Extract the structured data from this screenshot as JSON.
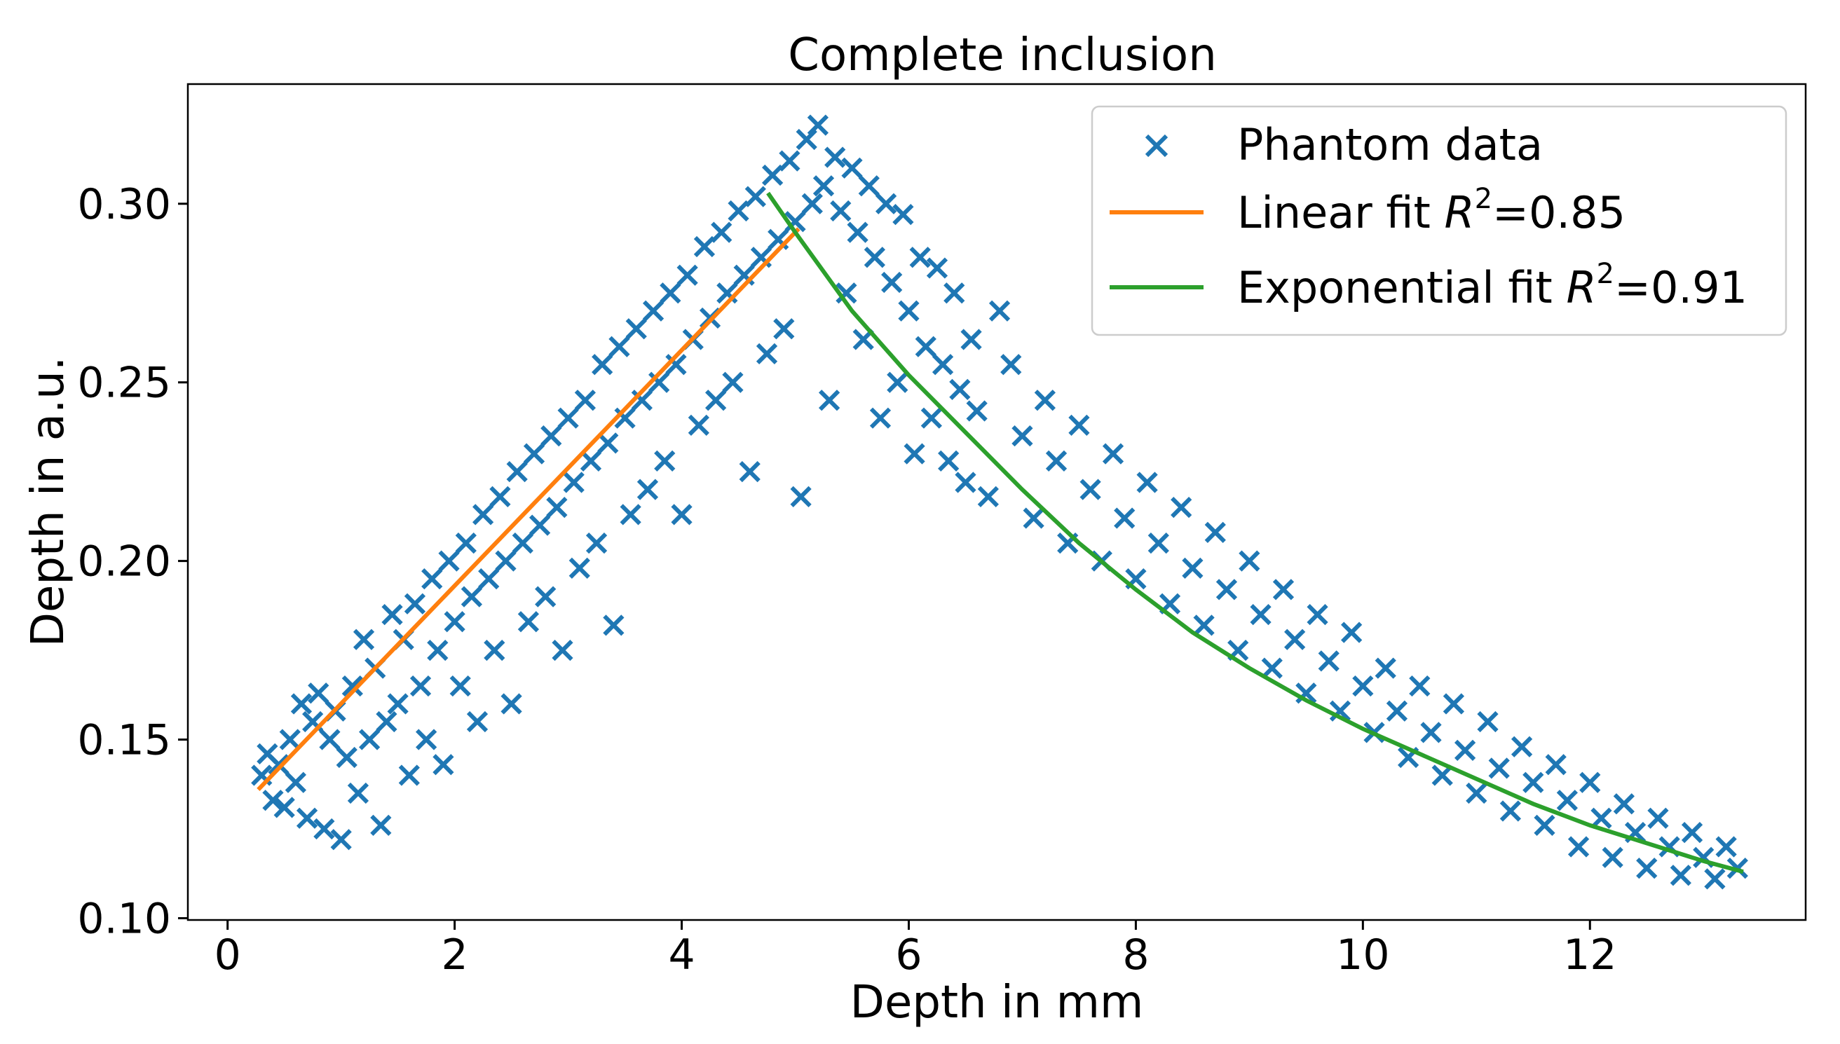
{
  "chart_data": {
    "type": "scatter",
    "title": "Complete inclusion",
    "xlabel": "Depth in mm",
    "ylabel": "Depth in a.u.",
    "xlim": [
      -0.35,
      13.9
    ],
    "ylim": [
      0.0995,
      0.3335
    ],
    "xticks": [
      0,
      2,
      4,
      6,
      8,
      10,
      12
    ],
    "xtick_labels": [
      "0",
      "2",
      "4",
      "6",
      "8",
      "10",
      "12"
    ],
    "yticks": [
      0.1,
      0.15,
      0.2,
      0.25,
      0.3
    ],
    "ytick_labels": [
      "0.10",
      "0.15",
      "0.20",
      "0.25",
      "0.30"
    ],
    "grid": false,
    "legend_position": "top-right",
    "colors": {
      "data": "#1f77b4",
      "linear": "#ff7f0e",
      "exponential": "#2ca02c"
    },
    "series": [
      {
        "name": "Phantom data",
        "kind": "scatter",
        "marker": "x",
        "points": [
          [
            0.3,
            0.14
          ],
          [
            0.35,
            0.146
          ],
          [
            0.4,
            0.133
          ],
          [
            0.45,
            0.143
          ],
          [
            0.5,
            0.131
          ],
          [
            0.55,
            0.15
          ],
          [
            0.6,
            0.138
          ],
          [
            0.65,
            0.16
          ],
          [
            0.7,
            0.128
          ],
          [
            0.75,
            0.155
          ],
          [
            0.8,
            0.163
          ],
          [
            0.85,
            0.125
          ],
          [
            0.9,
            0.15
          ],
          [
            0.95,
            0.158
          ],
          [
            1.0,
            0.122
          ],
          [
            1.05,
            0.145
          ],
          [
            1.1,
            0.165
          ],
          [
            1.15,
            0.135
          ],
          [
            1.2,
            0.178
          ],
          [
            1.25,
            0.15
          ],
          [
            1.3,
            0.17
          ],
          [
            1.35,
            0.126
          ],
          [
            1.4,
            0.155
          ],
          [
            1.45,
            0.185
          ],
          [
            1.5,
            0.16
          ],
          [
            1.55,
            0.178
          ],
          [
            1.6,
            0.14
          ],
          [
            1.65,
            0.188
          ],
          [
            1.7,
            0.165
          ],
          [
            1.75,
            0.15
          ],
          [
            1.8,
            0.195
          ],
          [
            1.85,
            0.175
          ],
          [
            1.9,
            0.143
          ],
          [
            1.95,
            0.2
          ],
          [
            2.0,
            0.183
          ],
          [
            2.05,
            0.165
          ],
          [
            2.1,
            0.205
          ],
          [
            2.15,
            0.19
          ],
          [
            2.2,
            0.155
          ],
          [
            2.25,
            0.213
          ],
          [
            2.3,
            0.195
          ],
          [
            2.35,
            0.175
          ],
          [
            2.4,
            0.218
          ],
          [
            2.45,
            0.2
          ],
          [
            2.5,
            0.16
          ],
          [
            2.55,
            0.225
          ],
          [
            2.6,
            0.205
          ],
          [
            2.65,
            0.183
          ],
          [
            2.7,
            0.23
          ],
          [
            2.75,
            0.21
          ],
          [
            2.8,
            0.19
          ],
          [
            2.85,
            0.235
          ],
          [
            2.9,
            0.215
          ],
          [
            2.95,
            0.175
          ],
          [
            3.0,
            0.24
          ],
          [
            3.05,
            0.222
          ],
          [
            3.1,
            0.198
          ],
          [
            3.15,
            0.245
          ],
          [
            3.2,
            0.228
          ],
          [
            3.25,
            0.205
          ],
          [
            3.3,
            0.255
          ],
          [
            3.35,
            0.233
          ],
          [
            3.4,
            0.182
          ],
          [
            3.45,
            0.26
          ],
          [
            3.5,
            0.24
          ],
          [
            3.55,
            0.213
          ],
          [
            3.6,
            0.265
          ],
          [
            3.65,
            0.245
          ],
          [
            3.7,
            0.22
          ],
          [
            3.75,
            0.27
          ],
          [
            3.8,
            0.25
          ],
          [
            3.85,
            0.228
          ],
          [
            3.9,
            0.275
          ],
          [
            3.95,
            0.255
          ],
          [
            4.0,
            0.213
          ],
          [
            4.05,
            0.28
          ],
          [
            4.1,
            0.262
          ],
          [
            4.15,
            0.238
          ],
          [
            4.2,
            0.288
          ],
          [
            4.25,
            0.268
          ],
          [
            4.3,
            0.245
          ],
          [
            4.35,
            0.292
          ],
          [
            4.4,
            0.275
          ],
          [
            4.45,
            0.25
          ],
          [
            4.5,
            0.298
          ],
          [
            4.55,
            0.28
          ],
          [
            4.6,
            0.225
          ],
          [
            4.65,
            0.302
          ],
          [
            4.7,
            0.285
          ],
          [
            4.75,
            0.258
          ],
          [
            4.8,
            0.308
          ],
          [
            4.85,
            0.29
          ],
          [
            4.9,
            0.265
          ],
          [
            4.95,
            0.312
          ],
          [
            5.0,
            0.295
          ],
          [
            5.05,
            0.218
          ],
          [
            5.1,
            0.318
          ],
          [
            5.15,
            0.3
          ],
          [
            5.2,
            0.322
          ],
          [
            5.25,
            0.305
          ],
          [
            5.3,
            0.245
          ],
          [
            5.35,
            0.313
          ],
          [
            5.4,
            0.298
          ],
          [
            5.45,
            0.275
          ],
          [
            5.5,
            0.31
          ],
          [
            5.55,
            0.292
          ],
          [
            5.6,
            0.262
          ],
          [
            5.65,
            0.305
          ],
          [
            5.7,
            0.285
          ],
          [
            5.75,
            0.24
          ],
          [
            5.8,
            0.3
          ],
          [
            5.85,
            0.278
          ],
          [
            5.9,
            0.25
          ],
          [
            5.95,
            0.297
          ],
          [
            6.0,
            0.27
          ],
          [
            6.05,
            0.23
          ],
          [
            6.1,
            0.285
          ],
          [
            6.15,
            0.26
          ],
          [
            6.2,
            0.24
          ],
          [
            6.25,
            0.282
          ],
          [
            6.3,
            0.255
          ],
          [
            6.35,
            0.228
          ],
          [
            6.4,
            0.275
          ],
          [
            6.45,
            0.248
          ],
          [
            6.5,
            0.222
          ],
          [
            6.55,
            0.262
          ],
          [
            6.6,
            0.242
          ],
          [
            6.7,
            0.218
          ],
          [
            6.8,
            0.27
          ],
          [
            6.9,
            0.255
          ],
          [
            7.0,
            0.235
          ],
          [
            7.1,
            0.212
          ],
          [
            7.2,
            0.245
          ],
          [
            7.3,
            0.228
          ],
          [
            7.4,
            0.205
          ],
          [
            7.5,
            0.238
          ],
          [
            7.6,
            0.22
          ],
          [
            7.7,
            0.2
          ],
          [
            7.8,
            0.23
          ],
          [
            7.9,
            0.212
          ],
          [
            8.0,
            0.195
          ],
          [
            8.1,
            0.222
          ],
          [
            8.2,
            0.205
          ],
          [
            8.3,
            0.188
          ],
          [
            8.4,
            0.215
          ],
          [
            8.5,
            0.198
          ],
          [
            8.6,
            0.182
          ],
          [
            8.7,
            0.208
          ],
          [
            8.8,
            0.192
          ],
          [
            8.9,
            0.175
          ],
          [
            9.0,
            0.2
          ],
          [
            9.1,
            0.185
          ],
          [
            9.2,
            0.17
          ],
          [
            9.3,
            0.192
          ],
          [
            9.4,
            0.178
          ],
          [
            9.5,
            0.163
          ],
          [
            9.6,
            0.185
          ],
          [
            9.7,
            0.172
          ],
          [
            9.8,
            0.158
          ],
          [
            9.9,
            0.18
          ],
          [
            10.0,
            0.165
          ],
          [
            10.1,
            0.152
          ],
          [
            10.2,
            0.17
          ],
          [
            10.3,
            0.158
          ],
          [
            10.4,
            0.145
          ],
          [
            10.5,
            0.165
          ],
          [
            10.6,
            0.152
          ],
          [
            10.7,
            0.14
          ],
          [
            10.8,
            0.16
          ],
          [
            10.9,
            0.147
          ],
          [
            11.0,
            0.135
          ],
          [
            11.1,
            0.155
          ],
          [
            11.2,
            0.142
          ],
          [
            11.3,
            0.13
          ],
          [
            11.4,
            0.148
          ],
          [
            11.5,
            0.138
          ],
          [
            11.6,
            0.126
          ],
          [
            11.7,
            0.143
          ],
          [
            11.8,
            0.133
          ],
          [
            11.9,
            0.12
          ],
          [
            12.0,
            0.138
          ],
          [
            12.1,
            0.128
          ],
          [
            12.2,
            0.117
          ],
          [
            12.3,
            0.132
          ],
          [
            12.4,
            0.124
          ],
          [
            12.5,
            0.114
          ],
          [
            12.6,
            0.128
          ],
          [
            12.7,
            0.12
          ],
          [
            12.8,
            0.112
          ],
          [
            12.9,
            0.124
          ],
          [
            13.0,
            0.117
          ],
          [
            13.1,
            0.111
          ],
          [
            13.2,
            0.12
          ],
          [
            13.3,
            0.114
          ]
        ]
      },
      {
        "name": "Linear fit R²=0.85",
        "kind": "line",
        "x": [
          0.27,
          5.03
        ],
        "y": [
          0.136,
          0.293
        ]
      },
      {
        "name": "Exponential fit R²=0.91",
        "kind": "line",
        "x": [
          4.76,
          5.0,
          5.5,
          6.0,
          6.5,
          7.0,
          7.5,
          8.0,
          8.5,
          9.0,
          9.5,
          10.0,
          10.5,
          11.0,
          11.5,
          12.0,
          12.5,
          13.0,
          13.35
        ],
        "y": [
          0.303,
          0.292,
          0.27,
          0.252,
          0.236,
          0.22,
          0.205,
          0.192,
          0.18,
          0.17,
          0.161,
          0.153,
          0.146,
          0.139,
          0.132,
          0.126,
          0.121,
          0.116,
          0.113
        ]
      }
    ],
    "legend": {
      "entries": [
        "Phantom data",
        "Linear fit",
        "Exponential fit"
      ],
      "r2_linear": "0.85",
      "r2_exponential": "0.91"
    }
  }
}
